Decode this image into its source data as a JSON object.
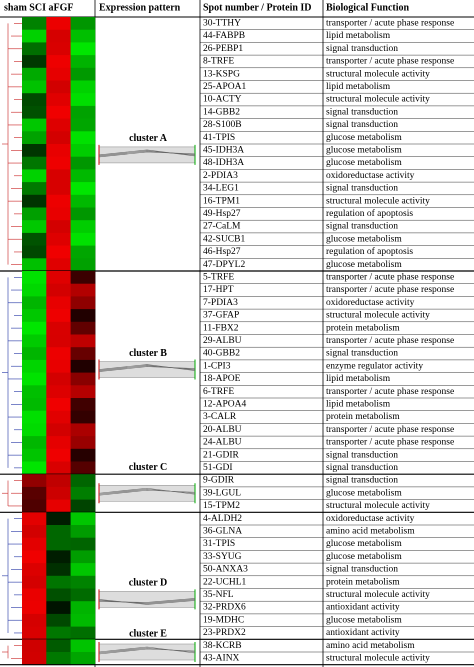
{
  "header": {
    "heatmap": "sham SCI aFGF",
    "pattern": "Expression pattern",
    "spot": "Spot number / Protein ID",
    "function": "Biological Function"
  },
  "groups": [
    {
      "clusters": [
        "cluster A"
      ],
      "rows": [
        [
          "30-TTHY",
          "transporter / acute phase response"
        ],
        [
          "44-FABPB",
          "lipid metabolism"
        ],
        [
          "26-PEBP1",
          "signal transduction"
        ],
        [
          "8-TRFE",
          "transporter / acute phase response"
        ],
        [
          "13-KSPG",
          "structural molecule activity"
        ],
        [
          "25-APOA1",
          "lipid metabolism"
        ],
        [
          "10-ACTY",
          "structural molecule activity"
        ],
        [
          "14-GBB2",
          "signal transduction"
        ],
        [
          "28-S100B",
          "signal transduction"
        ],
        [
          "41-TPIS",
          "glucose metabolism"
        ],
        [
          "45-IDH3A",
          "glucose metabolism"
        ],
        [
          "48-IDH3A",
          "glucose metabolism"
        ],
        [
          "2-PDIA3",
          "oxidoreductase activity"
        ],
        [
          "34-LEG1",
          "signal transduction"
        ],
        [
          "16-TPM1",
          "structural molecule activity"
        ],
        [
          "49-Hsp27",
          "regulation of apoptosis"
        ],
        [
          "27-CaLM",
          "signal transduction"
        ],
        [
          "42-SUCB1",
          "glucose metabolism"
        ],
        [
          "46-Hsp27",
          "regulation of apoptosis"
        ],
        [
          "47-DPYL2",
          "glucose metabolism"
        ]
      ]
    },
    {
      "clusters": [
        "cluster B",
        "cluster C"
      ],
      "rows": [
        [
          "5-TRFE",
          "transporter / acute phase response"
        ],
        [
          "17-HPT",
          "transporter / acute phase response"
        ],
        [
          "7-PDIA3",
          "oxidoreductase activity"
        ],
        [
          "37-GFAP",
          "structural molecule activity"
        ],
        [
          "11-FBX2",
          "protein metabolism"
        ],
        [
          "29-ALBU",
          "transporter / acute phase response"
        ],
        [
          "40-GBB2",
          "signal transduction"
        ],
        [
          "1-CPI3",
          "enzyme regulator activity"
        ],
        [
          "18-APOE",
          "lipid metabolism"
        ],
        [
          "6-TRFE",
          "transporter / acute phase response"
        ],
        [
          "12-APOA4",
          "lipid metabolism"
        ],
        [
          "3-CALR",
          "protein metabolism"
        ],
        [
          "20-ALBU",
          "transporter / acute phase response"
        ],
        [
          "24-ALBU",
          "transporter / acute phase response"
        ],
        [
          "21-GDIR",
          "signal transduction"
        ],
        [
          "51-GDI",
          "signal transduction"
        ]
      ]
    },
    {
      "clusters": [],
      "rows": [
        [
          "9-GDIR",
          "signal transduction"
        ],
        [
          "39-LGUL",
          "glucose metabolism"
        ],
        [
          "15-TPM2",
          "structural molecule activity"
        ]
      ]
    },
    {
      "clusters": [
        "cluster D",
        "cluster E"
      ],
      "rows": [
        [
          "4-ALDH2",
          "oxidoreductase activity"
        ],
        [
          "36-GLNA",
          "amino acid metabolism"
        ],
        [
          "31-TPIS",
          "glucose metabolism"
        ],
        [
          "33-SYUG",
          "glucose metabolism"
        ],
        [
          "50-ANXA3",
          "signal transduction"
        ],
        [
          "22-UCHL1",
          "protein metabolism"
        ],
        [
          "35-NFL",
          "structural molecule activity"
        ],
        [
          "32-PRDX6",
          "antioxidant activity"
        ],
        [
          "19-MDHC",
          "glucose metabolism"
        ],
        [
          "23-PRDX2",
          "antioxidant activity"
        ]
      ]
    },
    {
      "clusters": [],
      "rows": [
        [
          "38-KCRB",
          "amino acid metabolism"
        ],
        [
          "43-AINX",
          "structural molecule activity"
        ]
      ]
    }
  ]
}
